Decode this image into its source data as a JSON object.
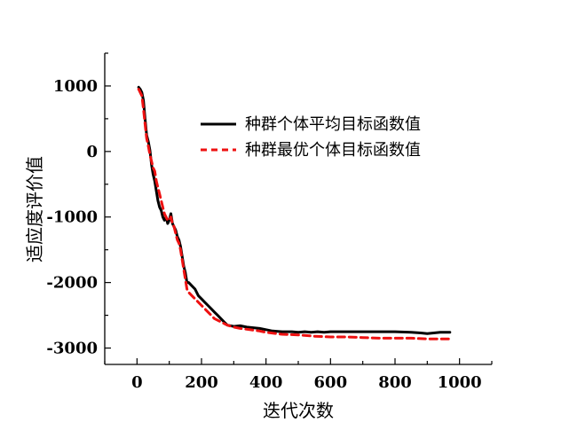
{
  "chart_data": {
    "type": "line",
    "xlabel": "迭代次数",
    "ylabel": "适应度评价值",
    "xlim": [
      -100,
      1100
    ],
    "ylim": [
      -3250,
      1500
    ],
    "xticks": [
      0,
      200,
      400,
      600,
      800,
      1000
    ],
    "yticks": [
      -3000,
      -2000,
      -1000,
      0,
      1000
    ],
    "grid": false,
    "legend_position": "upper-center",
    "series": [
      {
        "name": "种群个体平均目标函数值",
        "color": "#000000",
        "style": "solid",
        "x": [
          5,
          10,
          15,
          20,
          25,
          30,
          35,
          40,
          45,
          50,
          55,
          60,
          65,
          70,
          75,
          80,
          85,
          90,
          95,
          100,
          105,
          110,
          115,
          120,
          125,
          130,
          135,
          140,
          145,
          150,
          155,
          160,
          170,
          180,
          190,
          200,
          210,
          220,
          230,
          240,
          250,
          260,
          270,
          280,
          300,
          320,
          340,
          360,
          380,
          400,
          420,
          450,
          480,
          500,
          520,
          540,
          560,
          580,
          600,
          650,
          700,
          750,
          800,
          850,
          880,
          900,
          920,
          940,
          970
        ],
        "y": [
          980,
          950,
          900,
          780,
          500,
          250,
          150,
          20,
          -200,
          -350,
          -450,
          -600,
          -750,
          -850,
          -900,
          -1000,
          -1050,
          -1000,
          -1100,
          -1050,
          -950,
          -1100,
          -1150,
          -1200,
          -1300,
          -1350,
          -1450,
          -1600,
          -1750,
          -1850,
          -2000,
          -2000,
          -2050,
          -2100,
          -2200,
          -2250,
          -2300,
          -2350,
          -2400,
          -2450,
          -2500,
          -2550,
          -2600,
          -2650,
          -2670,
          -2660,
          -2680,
          -2690,
          -2700,
          -2720,
          -2740,
          -2750,
          -2750,
          -2760,
          -2750,
          -2760,
          -2750,
          -2760,
          -2750,
          -2750,
          -2750,
          -2750,
          -2750,
          -2760,
          -2770,
          -2780,
          -2770,
          -2760,
          -2760
        ]
      },
      {
        "name": "种群最优个体目标函数值",
        "color": "#ee1111",
        "style": "dashed",
        "x": [
          5,
          10,
          15,
          20,
          25,
          30,
          35,
          40,
          45,
          50,
          55,
          60,
          65,
          70,
          75,
          80,
          85,
          90,
          95,
          100,
          105,
          110,
          115,
          120,
          125,
          130,
          135,
          140,
          145,
          150,
          155,
          160,
          170,
          180,
          190,
          200,
          220,
          240,
          260,
          280,
          300,
          320,
          350,
          380,
          400,
          450,
          500,
          550,
          600,
          650,
          700,
          750,
          800,
          850,
          900,
          950,
          970
        ],
        "y": [
          950,
          900,
          850,
          650,
          420,
          200,
          80,
          -50,
          -150,
          -250,
          -300,
          -450,
          -550,
          -650,
          -750,
          -850,
          -950,
          -1000,
          -1050,
          -1050,
          -1000,
          -1100,
          -1150,
          -1250,
          -1350,
          -1400,
          -1500,
          -1650,
          -1800,
          -1950,
          -2100,
          -2150,
          -2200,
          -2250,
          -2300,
          -2350,
          -2450,
          -2550,
          -2600,
          -2650,
          -2680,
          -2700,
          -2720,
          -2740,
          -2760,
          -2790,
          -2800,
          -2820,
          -2830,
          -2830,
          -2840,
          -2850,
          -2850,
          -2850,
          -2860,
          -2860,
          -2860
        ]
      }
    ]
  }
}
